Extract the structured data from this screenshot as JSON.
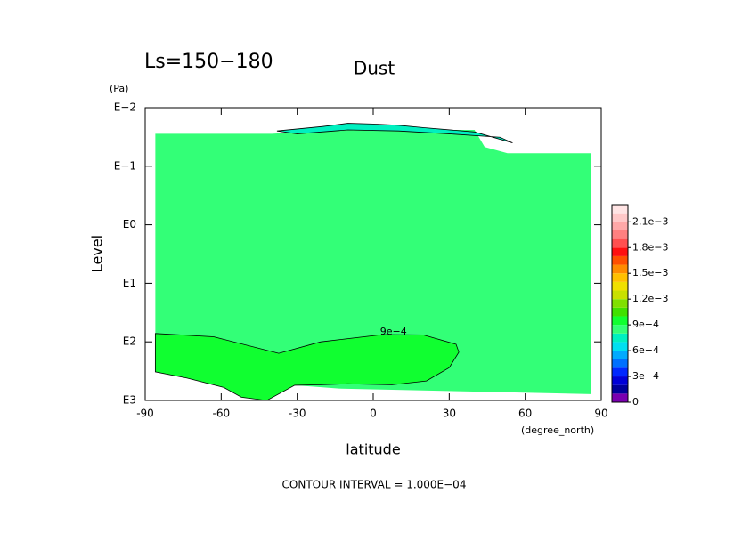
{
  "chart_data": {
    "type": "contour",
    "title": "Dust",
    "subtitle": "Ls=150−180",
    "x_label": "latitude",
    "x_unit": "(degree_north)",
    "y_label": "Level",
    "y_unit": "(Pa)",
    "annotation": "CONTOUR INTERVAL = 1.000E−04",
    "xlim": [
      -90,
      90
    ],
    "xticks": [
      -90,
      -60,
      -30,
      0,
      30,
      60,
      90
    ],
    "ylim": [
      0.01,
      1000
    ],
    "ylog": true,
    "yreverse": true,
    "yticks": [
      {
        "value": 0.01,
        "label": "E−2"
      },
      {
        "value": 0.1,
        "label": "E−1"
      },
      {
        "value": 1,
        "label": "E0"
      },
      {
        "value": 10,
        "label": "E1"
      },
      {
        "value": 100,
        "label": "E2"
      },
      {
        "value": 1000,
        "label": "E3"
      }
    ],
    "levels": [
      0,
      0.0001,
      0.0002,
      0.0003,
      0.0004,
      0.0005,
      0.0006,
      0.0007,
      0.0008,
      0.0009,
      0.001,
      0.0011,
      0.0012,
      0.0013,
      0.0014,
      0.0015,
      0.0016,
      0.0017,
      0.0018,
      0.0019,
      0.002,
      0.0021,
      0.0022,
      0.0023
    ],
    "colors": [
      "#7a00b0",
      "#00009a",
      "#0000d8",
      "#0028ff",
      "#0070ff",
      "#00aaff",
      "#00e0f0",
      "#00f0c0",
      "#33ff77",
      "#10ff30",
      "#40e000",
      "#80e000",
      "#c8e000",
      "#f0e000",
      "#ffc000",
      "#ff8c00",
      "#ff5000",
      "#ff1010",
      "#ff5050",
      "#ff8080",
      "#ffa8a8",
      "#ffc8c8",
      "#ffe4e4"
    ],
    "colorbar_ticks": [
      {
        "value": 0,
        "label": "0"
      },
      {
        "value": 0.0003,
        "label": "3e−4"
      },
      {
        "value": 0.0006,
        "label": "6e−4"
      },
      {
        "value": 0.0009,
        "label": "9e−4"
      },
      {
        "value": 0.0012,
        "label": "1.2e−3"
      },
      {
        "value": 0.0015,
        "label": "1.5e−3"
      },
      {
        "value": 0.0018,
        "label": "1.8e−3"
      },
      {
        "value": 0.0021,
        "label": "2.1e−3"
      }
    ],
    "regions": [
      {
        "level": 0.00085,
        "lat": [
          -86,
          -40,
          -15,
          -12,
          -3,
          0,
          20,
          40,
          44,
          53,
          86,
          86,
          -12.6,
          -31,
          -42,
          -52,
          -61,
          -73.5,
          -86
        ],
        "p": [
          0.028,
          0.028,
          0.024,
          0.0195,
          0.0195,
          0.024,
          0.024,
          0.024,
          0.047,
          0.06,
          0.06,
          780,
          630,
          550,
          710,
          640,
          465,
          415,
          325
        ]
      },
      {
        "level": 0.00075,
        "lat": [
          -38,
          -20,
          -10,
          0,
          10,
          20,
          40,
          55,
          50,
          30,
          10,
          -10,
          -30
        ],
        "p": [
          0.025,
          0.021,
          0.0185,
          0.019,
          0.02,
          0.022,
          0.026,
          0.04,
          0.032,
          0.028,
          0.025,
          0.024,
          0.028
        ]
      },
      {
        "level": 0.00095,
        "lat": [
          -86,
          -63,
          -37.3,
          -20.7,
          3.9,
          19.7,
          32.7,
          33.8,
          30,
          21,
          7.4,
          -10,
          -20.7,
          -31,
          -42,
          -52,
          -59,
          -73.5,
          -86
        ],
        "p": [
          72,
          82,
          157,
          100,
          75,
          76,
          110,
          150,
          276,
          465,
          540,
          520,
          540,
          550,
          1000,
          880,
          600,
          415,
          325
        ]
      }
    ],
    "contour_labels": [
      {
        "text": "9e−4",
        "lat": 8,
        "p": 68
      }
    ]
  }
}
